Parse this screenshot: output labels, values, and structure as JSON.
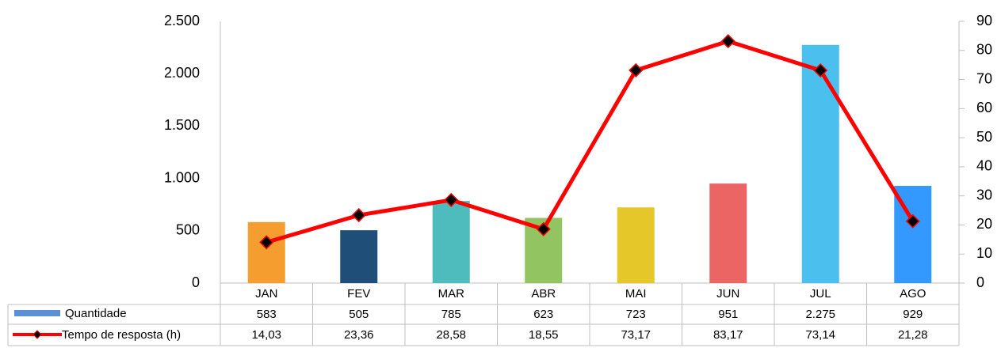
{
  "chart_data": {
    "type": "bar",
    "categories": [
      "JAN",
      "FEV",
      "MAR",
      "ABR",
      "MAI",
      "JUN",
      "JUL",
      "AGO"
    ],
    "series": [
      {
        "name": "Quantidade",
        "color": "#5b8fd6",
        "colors": [
          "#f59e2f",
          "#1f4e79",
          "#4ebcbd",
          "#93c462",
          "#e5c72a",
          "#ec6565",
          "#4bbfee",
          "#3399ff"
        ],
        "values": [
          583,
          505,
          785,
          623,
          723,
          951,
          2275,
          929
        ],
        "value_labels": [
          "583",
          "505",
          "785",
          "623",
          "723",
          "951",
          "2.275",
          "929"
        ]
      },
      {
        "name": "Tempo de resposta (h)",
        "type": "line",
        "axis": "y2",
        "color": "#ff0000",
        "marker_color": "#000000",
        "values": [
          14.03,
          23.36,
          28.58,
          18.55,
          73.17,
          83.17,
          73.14,
          21.28
        ],
        "value_labels": [
          "14,03",
          "23,36",
          "28,58",
          "18,55",
          "73,17",
          "83,17",
          "73,14",
          "21,28"
        ]
      }
    ],
    "ylim": [
      0,
      2500
    ],
    "yticks": [
      0,
      500,
      {
        "value": 1000,
        "label": "1.000"
      },
      {
        "value": 1500,
        "label": "1.500"
      },
      {
        "value": 2000,
        "label": "2.000"
      },
      {
        "value": 2500,
        "label": "2.500"
      }
    ],
    "y2lim": [
      0,
      90
    ],
    "y2ticks": [
      0,
      10,
      20,
      30,
      40,
      50,
      60,
      70,
      80,
      90
    ],
    "data_table": true
  }
}
